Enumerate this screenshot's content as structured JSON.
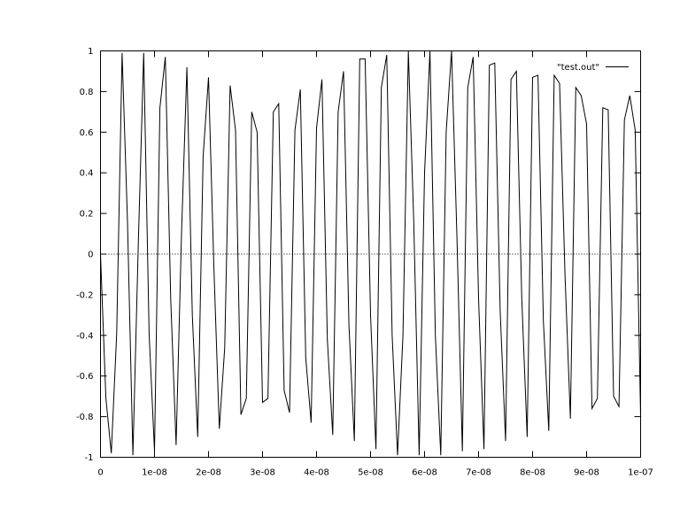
{
  "chart_data": {
    "type": "line",
    "title": "",
    "xlabel": "",
    "ylabel": "",
    "xlim": [
      0,
      1e-07
    ],
    "ylim": [
      -1,
      1
    ],
    "grid": false,
    "legend_position": "top-right",
    "x_ticks": [
      "0",
      "1e-08",
      "2e-08",
      "3e-08",
      "4e-08",
      "5e-08",
      "6e-08",
      "7e-08",
      "8e-08",
      "9e-08",
      "1e-07"
    ],
    "y_ticks": [
      "1",
      "0.8",
      "0.6",
      "0.4",
      "0.2",
      "0",
      "-0.2",
      "-0.4",
      "-0.6",
      "-0.8",
      "-1"
    ],
    "series": [
      {
        "name": "\"test.out\"",
        "color": "#000000",
        "x": [
          0,
          1e-09,
          2e-09,
          3e-09,
          4e-09,
          5e-09,
          6e-09,
          7e-09,
          8e-09,
          9e-09,
          1e-08,
          1.1e-08,
          1.2e-08,
          1.3e-08,
          1.4e-08,
          1.5e-08,
          1.6e-08,
          1.7e-08,
          1.8e-08,
          1.9e-08,
          2e-08,
          2.1e-08,
          2.2e-08,
          2.3e-08,
          2.4e-08,
          2.5e-08,
          2.6e-08,
          2.7e-08,
          2.8e-08,
          2.9e-08,
          3e-08,
          3.1e-08,
          3.2e-08,
          3.3e-08,
          3.4e-08,
          3.5e-08,
          3.6e-08,
          3.7e-08,
          3.8e-08,
          3.9e-08,
          4e-08,
          4.1e-08,
          4.2e-08,
          4.3e-08,
          4.4e-08,
          4.5e-08,
          4.6e-08,
          4.7e-08,
          4.8e-08,
          4.9e-08,
          5e-08,
          5.1e-08,
          5.2e-08,
          5.3e-08,
          5.4e-08,
          5.5e-08,
          5.6e-08,
          5.7e-08,
          5.8e-08,
          5.9e-08,
          6e-08,
          6.1e-08,
          6.2e-08,
          6.3e-08,
          6.4e-08,
          6.5e-08,
          6.6e-08,
          6.7e-08,
          6.8e-08,
          6.9e-08,
          7e-08,
          7.1e-08,
          7.2e-08,
          7.3e-08,
          7.4e-08,
          7.5e-08,
          7.6e-08,
          7.7e-08,
          7.8e-08,
          7.9e-08,
          8e-08,
          8.1e-08,
          8.2e-08,
          8.3e-08,
          8.4e-08,
          8.5e-08,
          8.6e-08,
          8.7e-08,
          8.8e-08,
          8.9e-08,
          9e-08,
          9.1e-08,
          9.2e-08,
          9.3e-08,
          9.4e-08,
          9.5e-08,
          9.6e-08,
          9.7e-08,
          9.8e-08,
          9.9e-08,
          1e-07
        ],
        "y": [
          0.0,
          -0.71,
          -0.98,
          -0.39,
          0.99,
          0.16,
          -0.99,
          0.05,
          0.99,
          -0.39,
          -0.97,
          0.72,
          0.97,
          -0.22,
          -0.94,
          0.1,
          0.92,
          -0.3,
          -0.9,
          0.48,
          0.87,
          -0.07,
          -0.86,
          -0.46,
          0.83,
          0.61,
          -0.79,
          -0.71,
          0.7,
          0.6,
          -0.73,
          -0.71,
          0.7,
          0.74,
          -0.67,
          -0.78,
          0.61,
          0.81,
          -0.51,
          -0.83,
          0.62,
          0.86,
          -0.42,
          -0.89,
          0.7,
          0.9,
          -0.35,
          -0.92,
          0.96,
          0.96,
          -0.3,
          -0.96,
          0.82,
          0.98,
          -0.4,
          -0.99,
          -0.4,
          1.0,
          0.16,
          -0.99,
          0.4,
          1.0,
          -0.4,
          -0.99,
          0.6,
          1.0,
          0.08,
          -0.97,
          0.82,
          0.97,
          -0.22,
          -0.96,
          0.93,
          0.94,
          -0.28,
          -0.92,
          0.86,
          0.9,
          -0.22,
          -0.9,
          0.87,
          0.88,
          -0.33,
          -0.87,
          0.88,
          0.84,
          -0.1,
          -0.81,
          0.82,
          0.78,
          0.64,
          -0.76,
          -0.71,
          0.72,
          0.71,
          -0.7,
          -0.75,
          0.66,
          0.78,
          0.61,
          -0.8
        ]
      }
    ]
  }
}
